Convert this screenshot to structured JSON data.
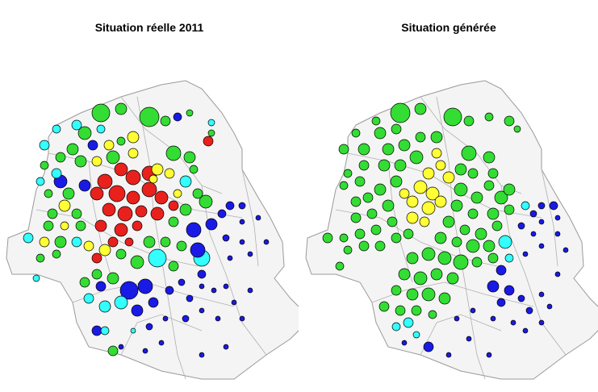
{
  "panels": [
    {
      "id": "left",
      "title": "Situation réelle 2011"
    },
    {
      "id": "right",
      "title": "Situation générée"
    }
  ],
  "colors": {
    "red": "#e8211d",
    "yellow": "#ffff33",
    "green": "#33dd33",
    "cyan": "#33ffff",
    "blue": "#1a1ae6",
    "region_fill": "#f4f4f4",
    "border": "#9a9a9a"
  }
}
